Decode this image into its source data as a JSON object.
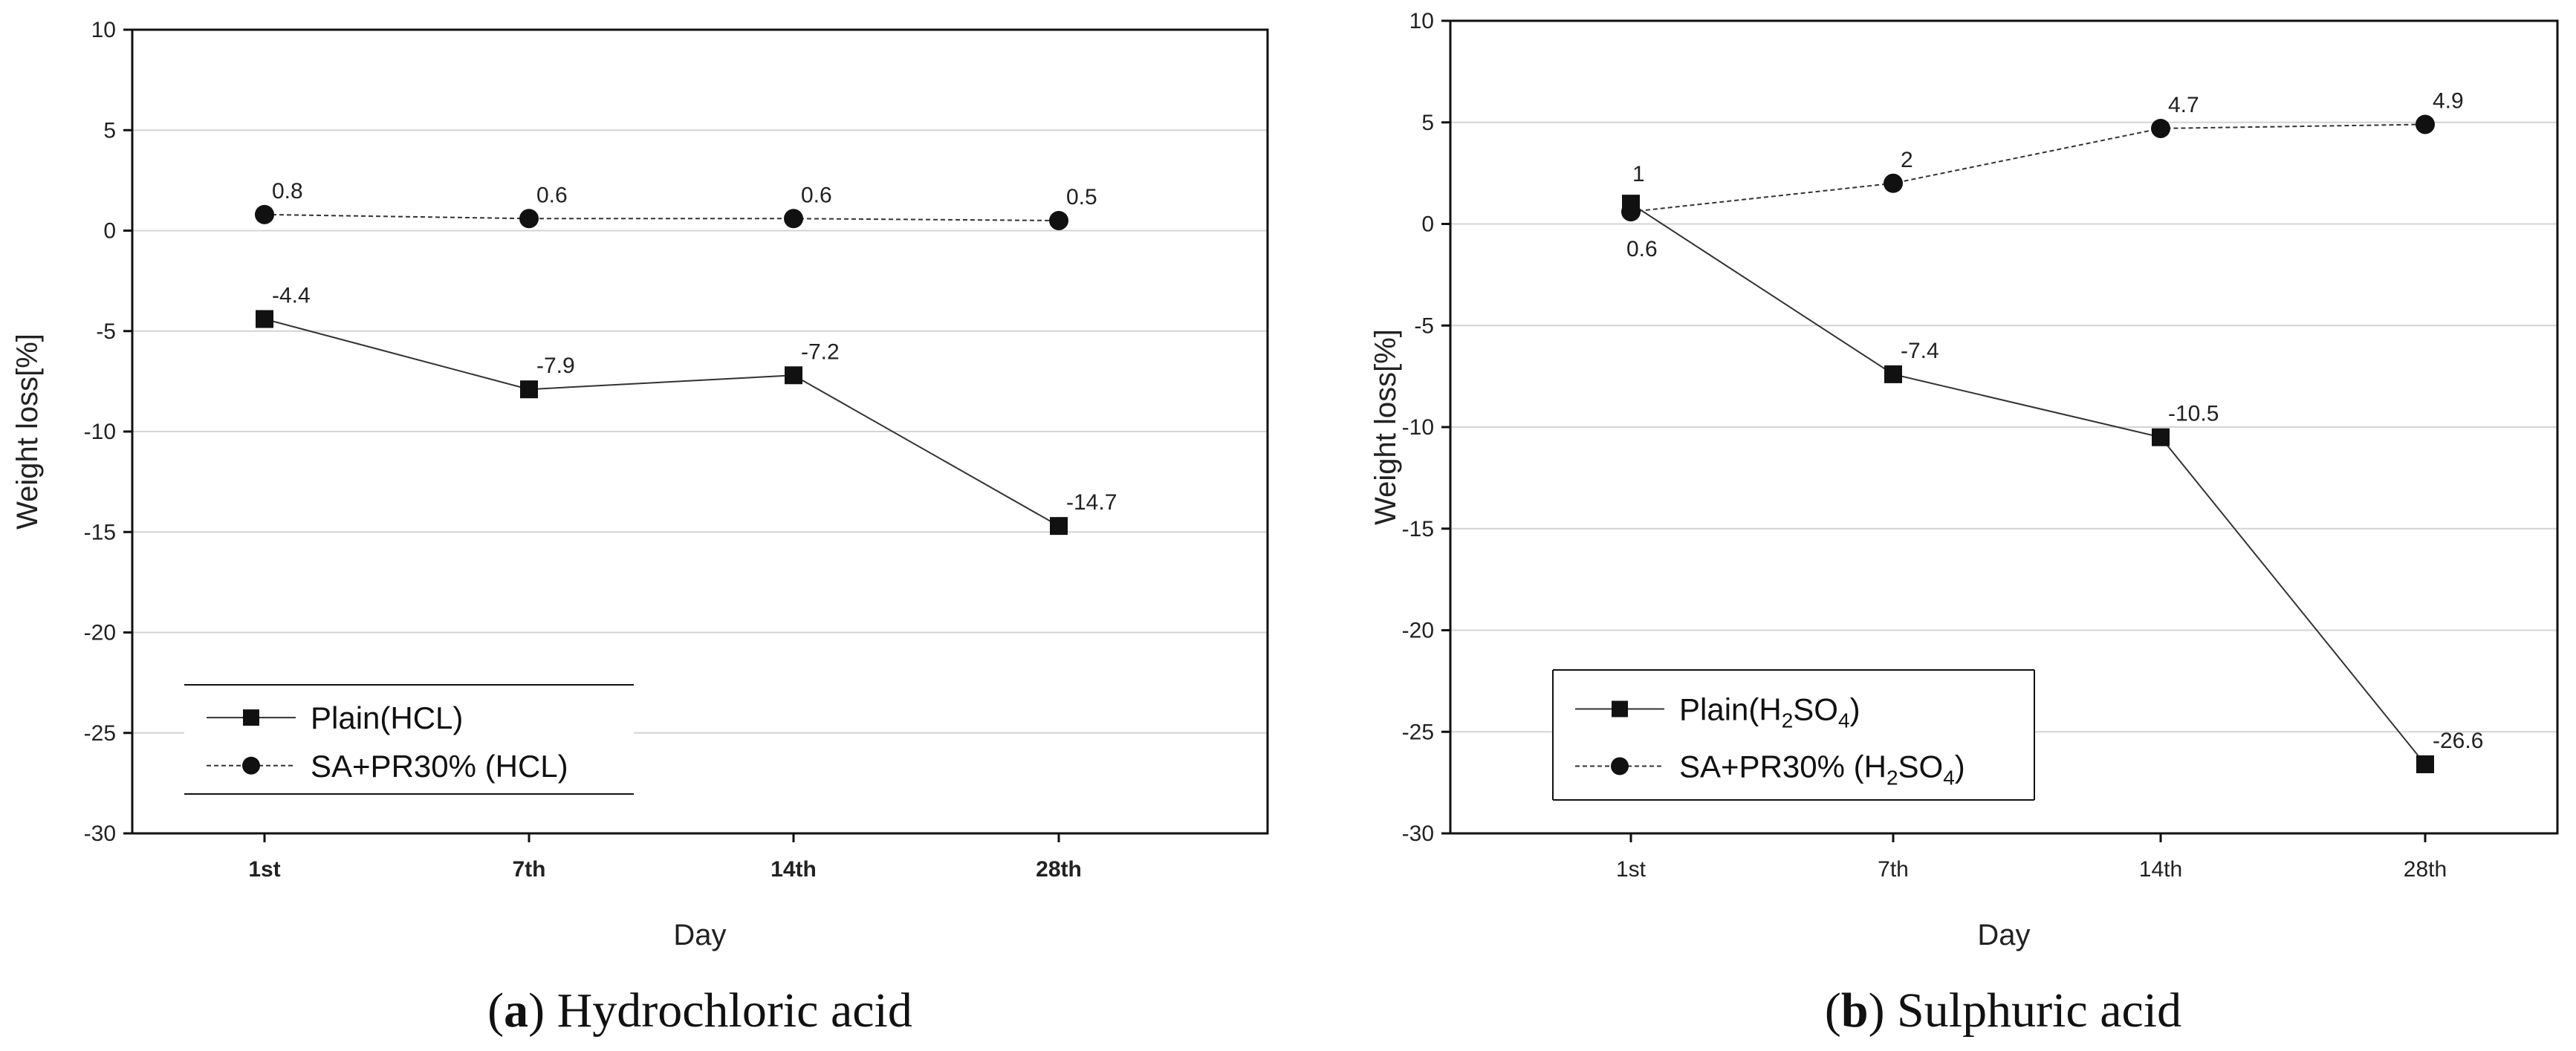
{
  "chart_data": [
    {
      "type": "line",
      "panel_letter": "a",
      "caption_open": "(",
      "caption_close": ") Hydrochloric acid",
      "xlabel": "Day",
      "ylabel": "Weight loss[%]",
      "categories": [
        "1st",
        "7th",
        "14th",
        "28th"
      ],
      "category_bold": true,
      "ylim": [
        -30,
        10
      ],
      "yticks": [
        10,
        5,
        0,
        -5,
        -10,
        -15,
        -20,
        -25,
        -30
      ],
      "grid": true,
      "legend_position": "bottom-left",
      "series": [
        {
          "name": "Plain(HCL)",
          "legend_parts": [
            {
              "t": "Plain(HCL)",
              "sub": false
            }
          ],
          "marker": "square",
          "line_style": "solid",
          "values": [
            -4.4,
            -7.9,
            -7.2,
            -14.7
          ],
          "labels": [
            "-4.4",
            "-7.9",
            "-7.2",
            "-14.7"
          ]
        },
        {
          "name": "SA+PR30% (HCL)",
          "legend_parts": [
            {
              "t": "SA+PR30% (HCL)",
              "sub": false
            }
          ],
          "marker": "circle",
          "line_style": "dashed",
          "values": [
            0.8,
            0.6,
            0.6,
            0.5
          ],
          "labels": [
            "0.8",
            "0.6",
            "0.6",
            "0.5"
          ]
        }
      ]
    },
    {
      "type": "line",
      "panel_letter": "b",
      "caption_open": "(",
      "caption_close": ") Sulphuric acid",
      "xlabel": "Day",
      "ylabel": "Weight loss[%]",
      "categories": [
        "1st",
        "7th",
        "14th",
        "28th"
      ],
      "category_bold": false,
      "ylim": [
        -30,
        10
      ],
      "yticks": [
        10,
        5,
        0,
        -5,
        -10,
        -15,
        -20,
        -25,
        -30
      ],
      "grid": true,
      "legend_position": "bottom-left",
      "series": [
        {
          "name": "Plain(H2SO4)",
          "legend_parts": [
            {
              "t": "Plain(H",
              "sub": false
            },
            {
              "t": "2",
              "sub": true
            },
            {
              "t": "SO",
              "sub": false
            },
            {
              "t": "4",
              "sub": true
            },
            {
              "t": ")",
              "sub": false
            }
          ],
          "marker": "square",
          "line_style": "solid",
          "values": [
            1,
            -7.4,
            -10.5,
            -26.6
          ],
          "labels": [
            "1",
            "-7.4",
            "-10.5",
            "-26.6"
          ]
        },
        {
          "name": "SA+PR30% (H2SO4)",
          "legend_parts": [
            {
              "t": "SA+PR30% (H",
              "sub": false
            },
            {
              "t": "2",
              "sub": true
            },
            {
              "t": "SO",
              "sub": false
            },
            {
              "t": "4",
              "sub": true
            },
            {
              "t": ")",
              "sub": false
            }
          ],
          "marker": "circle",
          "line_style": "dashed",
          "values": [
            0.6,
            2,
            4.7,
            4.9
          ],
          "labels": [
            "0.6",
            "2",
            "4.7",
            "4.9"
          ]
        }
      ]
    }
  ]
}
